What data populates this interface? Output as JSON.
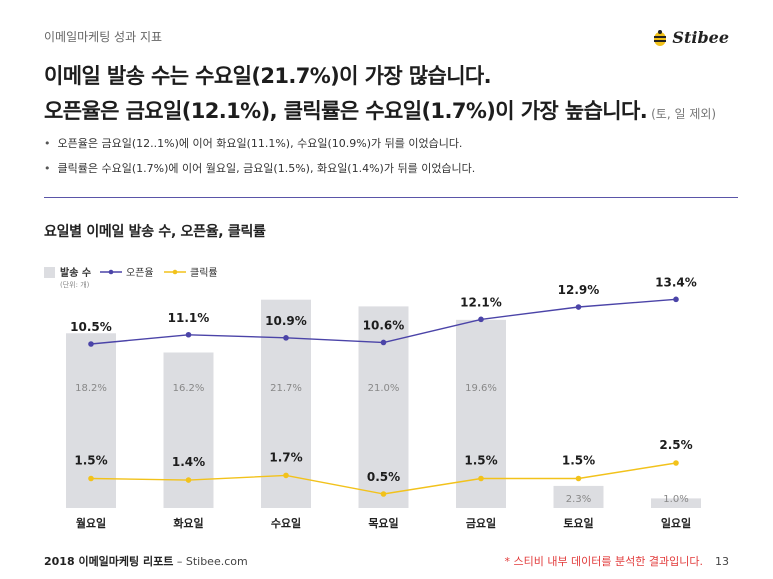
{
  "header": {
    "eyebrow": "이메일마케팅 성과 지표",
    "logo_text": "Stibee",
    "headline_1": "이메일 발송 수는 수요일(21.7%)이 가장 많습니다.",
    "headline_2": "오픈율은 금요일(12.1%), 클릭률은 수요일(1.7%)이 가장 높습니다.",
    "headline_2_note": "(토, 일 제외)"
  },
  "bullets": [
    "오픈율은 금요일(12..1%)에 이어 화요일(11.1%), 수요일(10.9%)가 뒤를 이었습니다.",
    "클릭률은 수요일(1.7%)에 이어 월요일, 금요일(1.5%), 화요일(1.4%)가 뒤를 이었습니다."
  ],
  "colors": {
    "bar": "#dcdde1",
    "open_line": "#4b44a8",
    "click_line": "#f2c21b",
    "divider": "#5a55a8",
    "source_note": "#e23b3b"
  },
  "chart_data": {
    "type": "bar",
    "title": "요일별 이메일 발송 수, 오픈율, 클릭률",
    "categories": [
      "월요일",
      "화요일",
      "수요일",
      "목요일",
      "금요일",
      "토요일",
      "일요일"
    ],
    "legend": {
      "bar_label": "발송 수",
      "bar_unit": "(단위: 개)",
      "open_label": "오픈율",
      "click_label": "클릭률",
      "placement": "top-left"
    },
    "grid": false,
    "series": [
      {
        "name": "발송 수",
        "type": "bar",
        "values": [
          18.2,
          16.2,
          21.7,
          21.0,
          19.6,
          2.3,
          1.0
        ],
        "labels": [
          "18.2%",
          "16.2%",
          "21.7%",
          "21.0%",
          "19.6%",
          "2.3%",
          "1.0%"
        ]
      },
      {
        "name": "오픈율",
        "type": "line",
        "values": [
          10.5,
          11.1,
          10.9,
          10.6,
          12.1,
          12.9,
          13.4
        ],
        "labels": [
          "10.5%",
          "11.1%",
          "10.9%",
          "10.6%",
          "12.1%",
          "12.9%",
          "13.4%"
        ]
      },
      {
        "name": "클릭률",
        "type": "line",
        "values": [
          1.5,
          1.4,
          1.7,
          0.5,
          1.5,
          1.5,
          2.5
        ],
        "labels": [
          "1.5%",
          "1.4%",
          "1.7%",
          "0.5%",
          "1.5%",
          "1.5%",
          "2.5%"
        ]
      }
    ]
  },
  "footer": {
    "left_bold": "2018 이메일마케팅 리포트",
    "left_rest": " – Stibee.com",
    "source_note": "* 스티비 내부 데이터를 분석한 결과입니다.",
    "page_number": "13"
  }
}
